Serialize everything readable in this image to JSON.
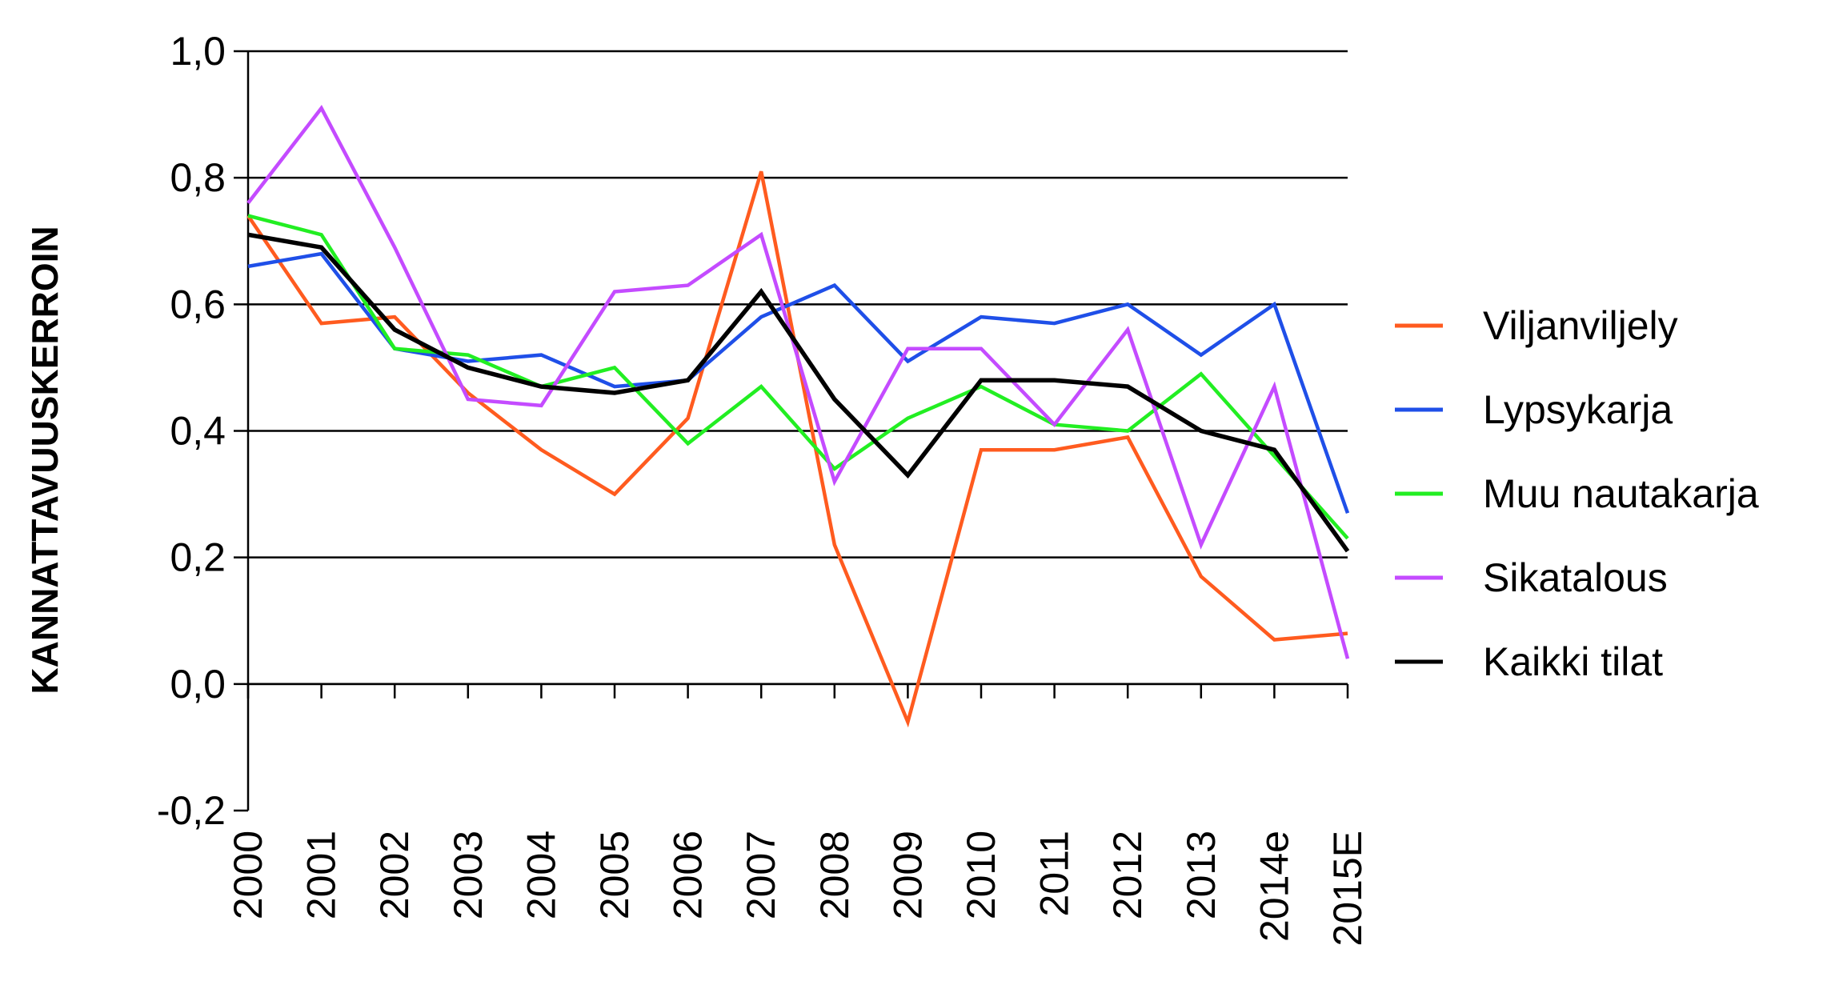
{
  "chart_data": {
    "type": "line",
    "title": "",
    "xlabel": "",
    "ylabel": "KANNATTAVUUSKERROIN",
    "categories": [
      "2000",
      "2001",
      "2002",
      "2003",
      "2004",
      "2005",
      "2006",
      "2007",
      "2008",
      "2009",
      "2010",
      "2011",
      "2012",
      "2013",
      "2014e",
      "2015E"
    ],
    "yticks": [
      "1,0",
      "0,8",
      "0,6",
      "0,4",
      "0,2",
      "0,0",
      "-0,2"
    ],
    "ylim": [
      -0.2,
      1.0
    ],
    "grid": true,
    "legend_position": "right",
    "series": [
      {
        "name": "Viljanviljely",
        "color": "#FF5B1F",
        "values": [
          0.74,
          0.57,
          0.58,
          0.46,
          0.37,
          0.3,
          0.42,
          0.81,
          0.22,
          -0.06,
          0.37,
          0.37,
          0.39,
          0.17,
          0.07,
          0.08
        ]
      },
      {
        "name": "Lypsykarja",
        "color": "#1F4FE8",
        "values": [
          0.66,
          0.68,
          0.53,
          0.51,
          0.52,
          0.47,
          0.48,
          0.58,
          0.63,
          0.51,
          0.58,
          0.57,
          0.6,
          0.52,
          0.6,
          0.27
        ]
      },
      {
        "name": "Muu nautakarja",
        "color": "#22EE22",
        "values": [
          0.74,
          0.71,
          0.53,
          0.52,
          0.47,
          0.5,
          0.38,
          0.47,
          0.34,
          0.42,
          0.47,
          0.41,
          0.4,
          0.49,
          0.36,
          0.23
        ]
      },
      {
        "name": "Sikatalous",
        "color": "#C44BFF",
        "values": [
          0.76,
          0.91,
          0.69,
          0.45,
          0.44,
          0.62,
          0.63,
          0.71,
          0.32,
          0.53,
          0.53,
          0.41,
          0.56,
          0.22,
          0.47,
          0.04
        ]
      },
      {
        "name": "Kaikki tilat",
        "color": "#000000",
        "values": [
          0.71,
          0.69,
          0.56,
          0.5,
          0.47,
          0.46,
          0.48,
          0.62,
          0.45,
          0.33,
          0.48,
          0.48,
          0.47,
          0.4,
          0.37,
          0.21
        ]
      }
    ]
  }
}
